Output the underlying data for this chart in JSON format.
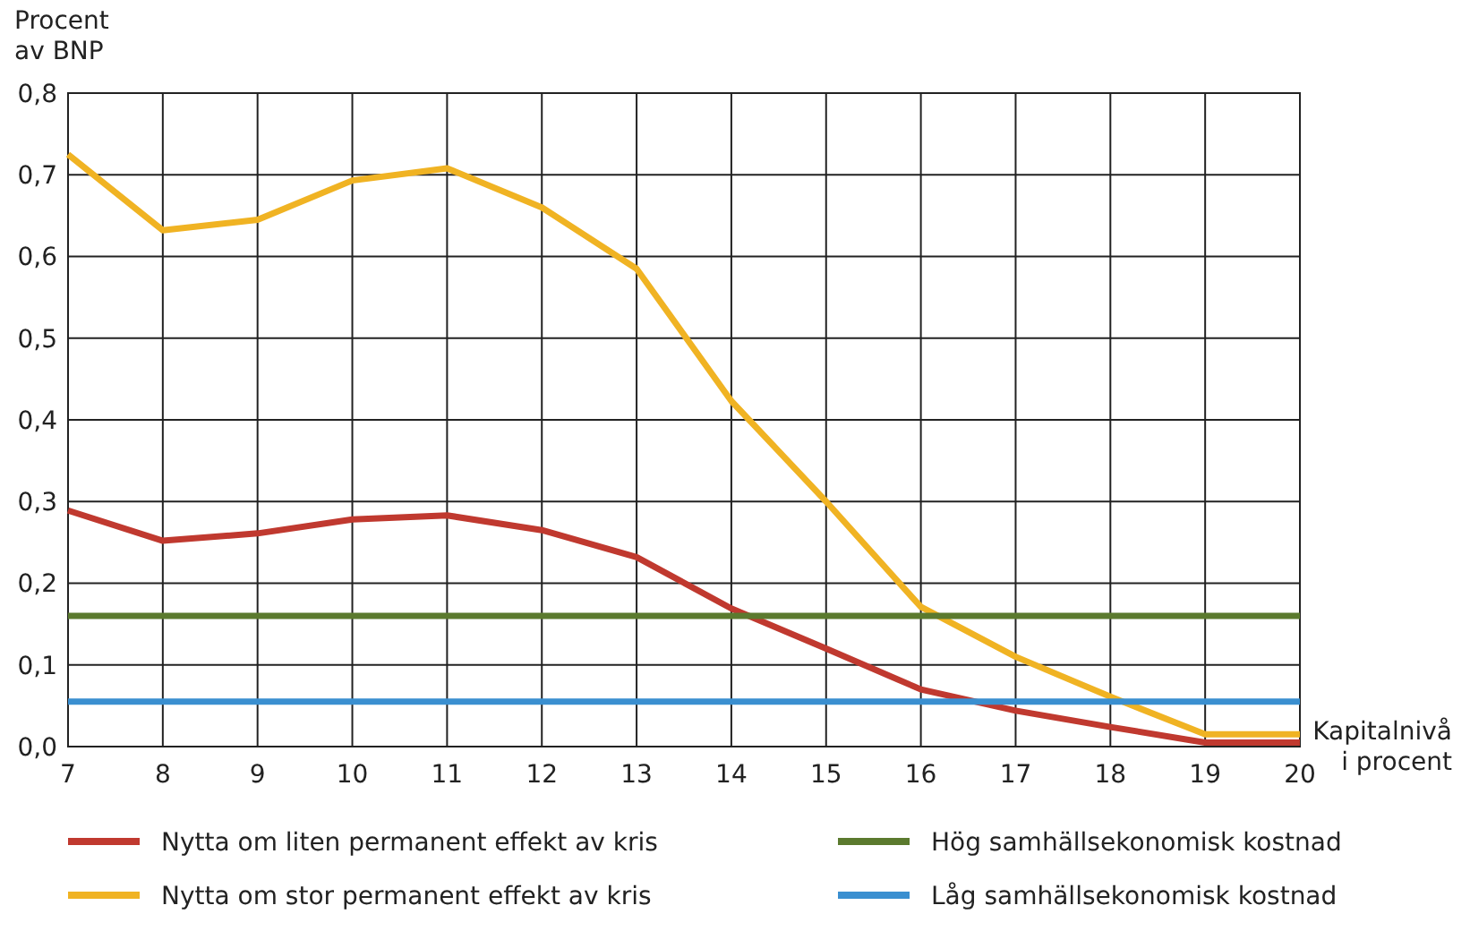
{
  "chart_data": {
    "type": "line",
    "ylabel": "Procent\nav BNP",
    "xlabel": "Kapitalnivå\ni procent",
    "x": [
      7,
      8,
      9,
      10,
      11,
      12,
      13,
      14,
      15,
      16,
      17,
      18,
      19,
      20
    ],
    "xlim": [
      7,
      20
    ],
    "xticks": [
      7,
      8,
      9,
      10,
      11,
      12,
      13,
      14,
      15,
      16,
      17,
      18,
      19,
      20
    ],
    "ylim": [
      0,
      0.8
    ],
    "yticks": [
      {
        "value": 0,
        "label": "0,0"
      },
      {
        "value": 0.1,
        "label": "0,1"
      },
      {
        "value": 0.2,
        "label": "0,2"
      },
      {
        "value": 0.3,
        "label": "0,3"
      },
      {
        "value": 0.4,
        "label": "0,4"
      },
      {
        "value": 0.5,
        "label": "0,5"
      },
      {
        "value": 0.6,
        "label": "0,6"
      },
      {
        "value": 0.7,
        "label": "0,7"
      },
      {
        "value": 0.8,
        "label": "0,8"
      }
    ],
    "grid": true,
    "legend": "bottom",
    "marker": "none",
    "line_style": "solid",
    "series": [
      {
        "name": "Nytta om liten permanent effekt av kris",
        "color": "#c0392f",
        "values": [
          0.289,
          0.252,
          0.261,
          0.278,
          0.283,
          0.265,
          0.232,
          0.169,
          0.12,
          0.07,
          0.044,
          0.024,
          0.005,
          0.005
        ]
      },
      {
        "name": "Nytta om stor permanent effekt av kris",
        "color": "#f0b323",
        "values": [
          0.725,
          0.632,
          0.645,
          0.693,
          0.708,
          0.66,
          0.585,
          0.423,
          0.3,
          0.171,
          0.11,
          0.061,
          0.015,
          0.015
        ]
      },
      {
        "name": "Hög samhällsekonomisk kostnad",
        "color": "#5b7a2e",
        "values": [
          0.16,
          0.16,
          0.16,
          0.16,
          0.16,
          0.16,
          0.16,
          0.16,
          0.16,
          0.16,
          0.16,
          0.16,
          0.16,
          0.16
        ]
      },
      {
        "name": "Låg samhällsekonomisk kostnad",
        "color": "#3a8fd0",
        "values": [
          0.055,
          0.055,
          0.055,
          0.055,
          0.055,
          0.055,
          0.055,
          0.055,
          0.055,
          0.055,
          0.055,
          0.055,
          0.055,
          0.055
        ]
      }
    ]
  }
}
